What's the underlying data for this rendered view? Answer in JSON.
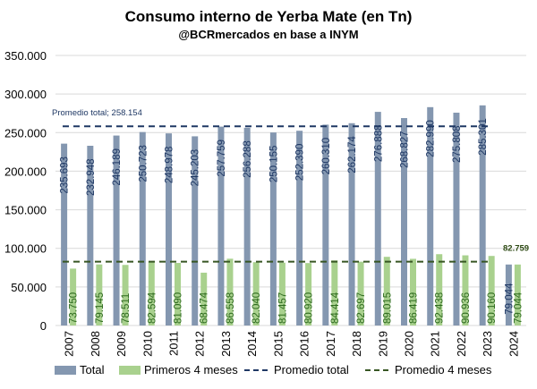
{
  "chart_data": {
    "type": "bar",
    "title": "Consumo interno de Yerba Mate (en Tn)",
    "subtitle": "@BCRmercados en base a INYM",
    "categories": [
      "2007",
      "2008",
      "2009",
      "2010",
      "2011",
      "2012",
      "2013",
      "2014",
      "2015",
      "2016",
      "2017",
      "2018",
      "2019",
      "2020",
      "2021",
      "2022",
      "2023",
      "2024"
    ],
    "series": [
      {
        "name": "Total",
        "color": "#8497b0",
        "values": [
          235693,
          232948,
          246189,
          250723,
          248978,
          245203,
          257759,
          256288,
          250155,
          252390,
          260310,
          262174,
          276888,
          268827,
          282990,
          275808,
          285301,
          79044
        ],
        "labels": [
          "235.693",
          "232.948",
          "246.189",
          "250.723",
          "248.978",
          "245.203",
          "257.759",
          "256.288",
          "250.155",
          "252.390",
          "260.310",
          "262.174",
          "276.888",
          "268.827",
          "282.990",
          "275.808",
          "285.301",
          "79.044"
        ]
      },
      {
        "name": "Primeros 4 meses",
        "color": "#a9d18e",
        "values": [
          73750,
          79145,
          78511,
          82594,
          81090,
          68474,
          86558,
          82040,
          81457,
          80920,
          84414,
          82697,
          89015,
          86419,
          92438,
          90936,
          90160,
          79044
        ],
        "labels": [
          "73.750",
          "79.145",
          "78.511",
          "82.594",
          "81.090",
          "68.474",
          "86.558",
          "82.040",
          "81.457",
          "80.920",
          "84.414",
          "82.697",
          "89.015",
          "86.419",
          "92.438",
          "90.936",
          "90.160",
          "79.044"
        ]
      }
    ],
    "reference_lines": [
      {
        "name": "Promedio total",
        "value": 258154,
        "color": "#1f3864",
        "label": "Promedio total; 258.154"
      },
      {
        "name": "Promedio 4 meses",
        "value": 82759,
        "color": "#375623",
        "label": "82.759"
      }
    ],
    "ylim": [
      0,
      350000
    ],
    "yticks": [
      0,
      50000,
      100000,
      150000,
      200000,
      250000,
      300000,
      350000
    ],
    "ytick_labels": [
      "0",
      "50.000",
      "100.000",
      "150.000",
      "200.000",
      "250.000",
      "300.000",
      "350.000"
    ],
    "grid": true,
    "legend_position": "bottom"
  }
}
